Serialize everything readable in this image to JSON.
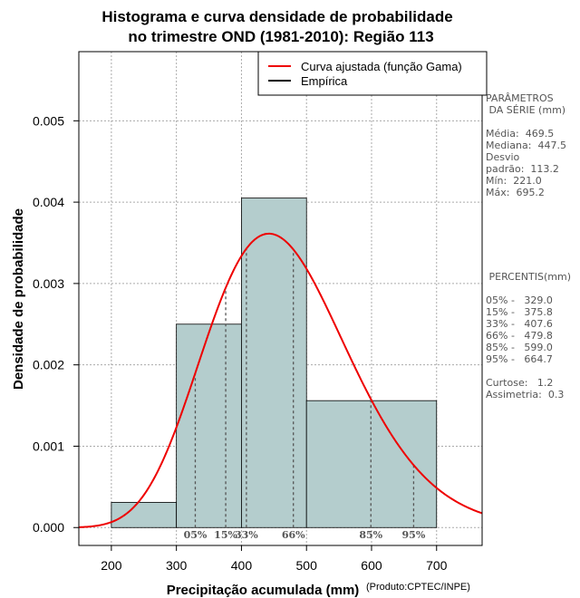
{
  "chart_data": {
    "type": "histogram",
    "title_lines": [
      "Histograma e curva densidade de probabilidade",
      "no trimestre OND (1981-2010): Região 113"
    ],
    "xlabel": "Precipitação acumulada (mm)",
    "ylabel": "Densidade de probabilidade",
    "credit": "(Produto:CPTEC/INPE)",
    "xlim": [
      150,
      770
    ],
    "ylim": [
      -0.00022,
      0.00585
    ],
    "xticks": [
      200,
      300,
      400,
      500,
      600,
      700
    ],
    "yticks": [
      0.0,
      0.001,
      0.002,
      0.003,
      0.004,
      0.005
    ],
    "ytick_labels": [
      "0.000",
      "0.001",
      "0.002",
      "0.003",
      "0.004",
      "0.005"
    ],
    "grid": true,
    "bar_color": "#b4cdcd",
    "curve_color": "#ee0000",
    "bins": [
      {
        "x0": 200,
        "x1": 300,
        "density": 0.00031
      },
      {
        "x0": 300,
        "x1": 400,
        "density": 0.0025
      },
      {
        "x0": 400,
        "x1": 500,
        "density": 0.00405
      },
      {
        "x0": 500,
        "x1": 700,
        "density": 0.00156
      }
    ],
    "gamma_fit": {
      "mean": 469.5,
      "sd": 113.2
    },
    "percentile_markers": [
      {
        "label": "05%",
        "value": 329.0
      },
      {
        "label": "15%",
        "value": 375.8
      },
      {
        "label": "33%",
        "value": 407.6
      },
      {
        "label": "66%",
        "value": 479.8
      },
      {
        "label": "85%",
        "value": 599.0
      },
      {
        "label": "95%",
        "value": 664.7
      }
    ],
    "legend": {
      "position": "top-right",
      "entries": [
        {
          "label": "Curva ajustada (função Gama)",
          "color": "#ee0000"
        },
        {
          "label": "Empírica",
          "color": "#000000"
        }
      ]
    }
  },
  "side_panel": {
    "params_title_1": "PARÂMETROS",
    "params_title_2": " DA SÉRIE (mm)",
    "media": "Média:  469.5",
    "mediana": "Mediana:  447.5",
    "desvio_1": "Desvio",
    "desvio_2": "padrão:  113.2",
    "min": "Mín:  221.0",
    "max": "Máx:  695.2",
    "percentis_title": " PERCENTIS(mm)",
    "p05": "05% -   329.0",
    "p15": "15% -   375.8",
    "p33": "33% -   407.6",
    "p66": "66% -   479.8",
    "p85": "85% -   599.0",
    "p95": "95% -   664.7",
    "curtose": "Curtose:   1.2",
    "assimetria": "Assimetria:  0.3"
  }
}
